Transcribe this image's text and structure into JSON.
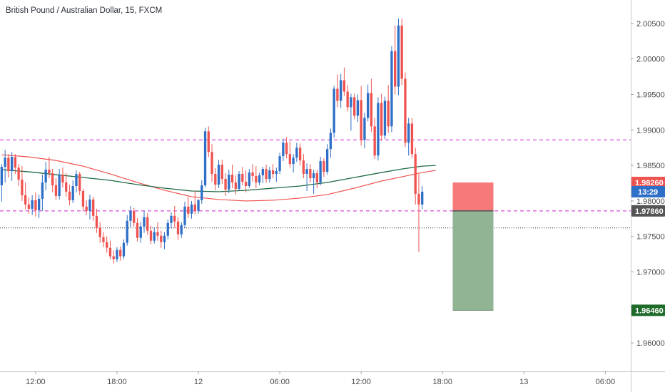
{
  "chart_data": {
    "type": "candlestick",
    "title": "British Pound / Australian Dollar, 15, FXCM",
    "ylim": [
      1.956,
      2.0083
    ],
    "y_ticks": [
      "2.00500",
      "2.00000",
      "1.99500",
      "1.99000",
      "1.98500",
      "1.98000",
      "1.97500",
      "1.97000",
      "1.96500",
      "1.96000"
    ],
    "x_ticks": [
      {
        "label": "12:00",
        "bar": 10
      },
      {
        "label": "18:00",
        "bar": 34
      },
      {
        "label": "12",
        "bar": 58
      },
      {
        "label": "06:00",
        "bar": 82
      },
      {
        "label": "12:00",
        "bar": 106
      },
      {
        "label": "18:00",
        "bar": 130
      },
      {
        "label": "13",
        "bar": 154
      },
      {
        "label": "06:00",
        "bar": 178
      }
    ],
    "bars_visible": 186,
    "horizontal_lines": [
      1.9886,
      1.9786
    ],
    "crosshair_y": 1.9762,
    "position": {
      "entry": 1.9786,
      "stop": 1.9826,
      "target": 1.9646,
      "bar_start": 133,
      "bar_end": 145
    },
    "price_tags": {
      "stop_label": "1.98260",
      "current_label": "13:29",
      "entry_label": "1.97860",
      "target_label": "1.96460"
    },
    "colors": {
      "up": "#2e6fc8",
      "down": "#ef5350",
      "ma_fast": "#ef5350",
      "ma_slow": "#1e6b46",
      "hline": "#d94fe0",
      "stop_zone": "#f56c6c",
      "target_zone": "#8ab08e",
      "stop_tag": "#ef5350",
      "current_tag": "#2e6fc8",
      "entry_tag": "#555555",
      "target_tag": "#1e6b2a"
    },
    "candles": [
      [
        1.9822,
        1.9852,
        1.9799,
        1.9848
      ],
      [
        1.9848,
        1.9872,
        1.9826,
        1.9861
      ],
      [
        1.9861,
        1.9866,
        1.9833,
        1.9842
      ],
      [
        1.9842,
        1.9869,
        1.9828,
        1.9862
      ],
      [
        1.9862,
        1.9866,
        1.9838,
        1.9847
      ],
      [
        1.9847,
        1.9852,
        1.9821,
        1.983
      ],
      [
        1.983,
        1.9849,
        1.98,
        1.9808
      ],
      [
        1.9808,
        1.9826,
        1.9788,
        1.9795
      ],
      [
        1.9795,
        1.9805,
        1.9782,
        1.9789
      ],
      [
        1.9789,
        1.9808,
        1.978,
        1.9801
      ],
      [
        1.9801,
        1.9812,
        1.9778,
        1.9787
      ],
      [
        1.9787,
        1.9809,
        1.9776,
        1.9803
      ],
      [
        1.9803,
        1.9837,
        1.9786,
        1.9826
      ],
      [
        1.9826,
        1.9855,
        1.9815,
        1.9844
      ],
      [
        1.9844,
        1.9862,
        1.9832,
        1.9839
      ],
      [
        1.9839,
        1.9845,
        1.9812,
        1.9822
      ],
      [
        1.9822,
        1.9832,
        1.9801,
        1.9807
      ],
      [
        1.9807,
        1.9845,
        1.9802,
        1.9837
      ],
      [
        1.9837,
        1.9847,
        1.9819,
        1.9826
      ],
      [
        1.9826,
        1.9839,
        1.9806,
        1.9813
      ],
      [
        1.9813,
        1.9823,
        1.9794,
        1.9801
      ],
      [
        1.9801,
        1.9829,
        1.9797,
        1.9821
      ],
      [
        1.9821,
        1.9843,
        1.9812,
        1.9838
      ],
      [
        1.9838,
        1.9841,
        1.9808,
        1.9814
      ],
      [
        1.9814,
        1.9817,
        1.9786,
        1.9792
      ],
      [
        1.9792,
        1.9801,
        1.978,
        1.9786
      ],
      [
        1.9786,
        1.9809,
        1.9774,
        1.9802
      ],
      [
        1.9802,
        1.9806,
        1.9772,
        1.9779
      ],
      [
        1.9779,
        1.9789,
        1.9755,
        1.9762
      ],
      [
        1.9762,
        1.977,
        1.9741,
        1.9749
      ],
      [
        1.9749,
        1.9756,
        1.9735,
        1.9742
      ],
      [
        1.9742,
        1.975,
        1.9727,
        1.9734
      ],
      [
        1.9734,
        1.9744,
        1.9718,
        1.9722
      ],
      [
        1.9722,
        1.973,
        1.9712,
        1.9718
      ],
      [
        1.9718,
        1.9735,
        1.9714,
        1.9731
      ],
      [
        1.9731,
        1.9736,
        1.9716,
        1.9722
      ],
      [
        1.9722,
        1.9746,
        1.9718,
        1.9741
      ],
      [
        1.9741,
        1.978,
        1.9737,
        1.9772
      ],
      [
        1.9772,
        1.9793,
        1.9763,
        1.9786
      ],
      [
        1.9786,
        1.979,
        1.9764,
        1.9769
      ],
      [
        1.9769,
        1.9776,
        1.9743,
        1.9748
      ],
      [
        1.9748,
        1.977,
        1.9741,
        1.9764
      ],
      [
        1.9764,
        1.9786,
        1.9755,
        1.9777
      ],
      [
        1.9777,
        1.9783,
        1.9752,
        1.9758
      ],
      [
        1.9758,
        1.9765,
        1.9739,
        1.9744
      ],
      [
        1.9744,
        1.9762,
        1.974,
        1.9756
      ],
      [
        1.9756,
        1.977,
        1.9744,
        1.9751
      ],
      [
        1.9751,
        1.9758,
        1.9734,
        1.9742
      ],
      [
        1.9742,
        1.9756,
        1.9732,
        1.9751
      ],
      [
        1.9751,
        1.9774,
        1.9746,
        1.9769
      ],
      [
        1.9769,
        1.9784,
        1.9761,
        1.9779
      ],
      [
        1.9779,
        1.9793,
        1.9762,
        1.9771
      ],
      [
        1.9771,
        1.9777,
        1.9745,
        1.9753
      ],
      [
        1.9753,
        1.977,
        1.9748,
        1.9766
      ],
      [
        1.9766,
        1.9799,
        1.9762,
        1.9792
      ],
      [
        1.9792,
        1.9806,
        1.9776,
        1.9782
      ],
      [
        1.9782,
        1.98,
        1.9775,
        1.9795
      ],
      [
        1.9795,
        1.9814,
        1.9781,
        1.9786
      ],
      [
        1.9786,
        1.9803,
        1.9782,
        1.9801
      ],
      [
        1.9801,
        1.9829,
        1.9796,
        1.9822
      ],
      [
        1.9822,
        1.9903,
        1.9819,
        1.9898
      ],
      [
        1.9898,
        1.9905,
        1.9862,
        1.9869
      ],
      [
        1.9869,
        1.988,
        1.9827,
        1.9838
      ],
      [
        1.9838,
        1.9846,
        1.9815,
        1.9823
      ],
      [
        1.9823,
        1.9858,
        1.9818,
        1.9851
      ],
      [
        1.9851,
        1.9858,
        1.9824,
        1.9831
      ],
      [
        1.9831,
        1.9839,
        1.9807,
        1.9816
      ],
      [
        1.9816,
        1.9844,
        1.9811,
        1.9837
      ],
      [
        1.9837,
        1.9851,
        1.9818,
        1.9826
      ],
      [
        1.9826,
        1.9836,
        1.9809,
        1.9817
      ],
      [
        1.9817,
        1.9842,
        1.9815,
        1.9838
      ],
      [
        1.9838,
        1.9848,
        1.9822,
        1.9827
      ],
      [
        1.9827,
        1.9843,
        1.9812,
        1.9821
      ],
      [
        1.9821,
        1.9845,
        1.9818,
        1.984
      ],
      [
        1.984,
        1.9852,
        1.9827,
        1.9835
      ],
      [
        1.9835,
        1.9849,
        1.9818,
        1.9826
      ],
      [
        1.9826,
        1.984,
        1.9822,
        1.9836
      ],
      [
        1.9836,
        1.9848,
        1.9825,
        1.9845
      ],
      [
        1.9845,
        1.9851,
        1.9826,
        1.9831
      ],
      [
        1.9831,
        1.9848,
        1.9826,
        1.9843
      ],
      [
        1.9843,
        1.9852,
        1.9832,
        1.9838
      ],
      [
        1.9838,
        1.9847,
        1.9827,
        1.9842
      ],
      [
        1.9842,
        1.9868,
        1.9838,
        1.9863
      ],
      [
        1.9863,
        1.9888,
        1.9856,
        1.9882
      ],
      [
        1.9882,
        1.989,
        1.986,
        1.9866
      ],
      [
        1.9866,
        1.9884,
        1.9847,
        1.9852
      ],
      [
        1.9852,
        1.9866,
        1.984,
        1.9861
      ],
      [
        1.9861,
        1.9882,
        1.9855,
        1.9875
      ],
      [
        1.9875,
        1.9881,
        1.985,
        1.9857
      ],
      [
        1.9857,
        1.9866,
        1.9832,
        1.9838
      ],
      [
        1.9838,
        1.9853,
        1.9814,
        1.9845
      ],
      [
        1.9845,
        1.9852,
        1.9826,
        1.9832
      ],
      [
        1.9832,
        1.9844,
        1.981,
        1.9839
      ],
      [
        1.9839,
        1.9844,
        1.9818,
        1.9826
      ],
      [
        1.9826,
        1.9862,
        1.9822,
        1.9856
      ],
      [
        1.9856,
        1.986,
        1.9834,
        1.9841
      ],
      [
        1.9841,
        1.988,
        1.9837,
        1.9873
      ],
      [
        1.9873,
        1.9902,
        1.9861,
        1.9896
      ],
      [
        1.9896,
        1.9962,
        1.9889,
        1.9958
      ],
      [
        1.9958,
        1.9978,
        1.9932,
        1.9941
      ],
      [
        1.9941,
        1.9979,
        1.9931,
        1.997
      ],
      [
        1.997,
        1.9988,
        1.9948,
        1.9954
      ],
      [
        1.9954,
        1.9963,
        1.9926,
        1.9932
      ],
      [
        1.9932,
        1.9951,
        1.9899,
        1.9946
      ],
      [
        1.9946,
        1.9951,
        1.9915,
        1.992
      ],
      [
        1.992,
        1.995,
        1.9911,
        1.9942
      ],
      [
        1.9942,
        1.9962,
        1.9878,
        1.9886
      ],
      [
        1.9886,
        1.9924,
        1.9874,
        1.9917
      ],
      [
        1.9917,
        1.9964,
        1.9912,
        1.9952
      ],
      [
        1.9952,
        1.9972,
        1.9897,
        1.9905
      ],
      [
        1.9905,
        1.9917,
        1.9859,
        1.9864
      ],
      [
        1.9864,
        1.9946,
        1.9857,
        1.9938
      ],
      [
        1.9938,
        1.9951,
        1.9885,
        1.9892
      ],
      [
        1.9892,
        1.9947,
        1.9887,
        1.9941
      ],
      [
        1.9941,
        1.9963,
        1.9896,
        1.9905
      ],
      [
        1.9905,
        2.0018,
        1.9897,
        2.0011
      ],
      [
        2.0011,
        2.0047,
        1.995,
        1.9961
      ],
      [
        1.9961,
        2.0057,
        1.9949,
        2.0047
      ],
      [
        2.0047,
        2.0057,
        1.9963,
        1.9972
      ],
      [
        1.9972,
        1.9981,
        1.9876,
        1.9882
      ],
      [
        1.9882,
        1.9917,
        1.9864,
        1.9909
      ],
      [
        1.9909,
        1.9917,
        1.986,
        1.9866
      ],
      [
        1.9866,
        1.9875,
        1.9795,
        1.981
      ],
      [
        1.981,
        1.9838,
        1.9728,
        1.9795
      ],
      [
        1.9795,
        1.9821,
        1.9788,
        1.9813
      ]
    ],
    "ma_fast": [
      [
        0,
        1.9865
      ],
      [
        8,
        1.9862
      ],
      [
        16,
        1.9857
      ],
      [
        24,
        1.9849
      ],
      [
        32,
        1.9838
      ],
      [
        40,
        1.9826
      ],
      [
        48,
        1.9815
      ],
      [
        56,
        1.9806
      ],
      [
        64,
        1.9802
      ],
      [
        72,
        1.98
      ],
      [
        80,
        1.9801
      ],
      [
        88,
        1.9804
      ],
      [
        96,
        1.9809
      ],
      [
        104,
        1.9818
      ],
      [
        112,
        1.9828
      ],
      [
        118,
        1.9834
      ],
      [
        124,
        1.984
      ],
      [
        128,
        1.9843
      ]
    ],
    "ma_slow": [
      [
        0,
        1.9844
      ],
      [
        8,
        1.9841
      ],
      [
        16,
        1.9837
      ],
      [
        24,
        1.9833
      ],
      [
        32,
        1.9829
      ],
      [
        40,
        1.9823
      ],
      [
        48,
        1.9818
      ],
      [
        56,
        1.9814
      ],
      [
        64,
        1.9813
      ],
      [
        72,
        1.9815
      ],
      [
        80,
        1.9818
      ],
      [
        88,
        1.9821
      ],
      [
        96,
        1.9826
      ],
      [
        104,
        1.9833
      ],
      [
        112,
        1.984
      ],
      [
        118,
        1.9845
      ],
      [
        124,
        1.9849
      ],
      [
        128,
        1.985
      ]
    ]
  }
}
